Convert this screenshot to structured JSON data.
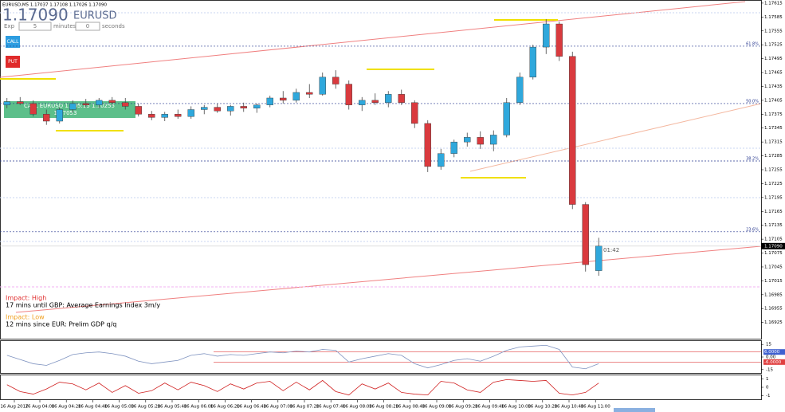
{
  "overlay": {
    "header": "EURUSD,M5 1.17037 1.17108 1.17026 1.17090",
    "big_price": "1.17090",
    "symbol": "EURUSD",
    "exp_label": "Exp",
    "exp_minutes": "5",
    "minutes_label": "minutes",
    "exp_seconds": "0",
    "seconds_label": "seconds",
    "call_button": "CALL",
    "put_button": "PUT",
    "trade_line1": "CALL EURUSD 11:05:15 1.10255",
    "trade_line2": "1.17053",
    "impact_high": "Impact: High",
    "news_high": "17 mins until GBP: Average Earnings Index 3m/y",
    "impact_low": "Impact: Low",
    "news_low": "12 mins since EUR: Prelim GDP q/q",
    "timer": "01:42"
  },
  "chart_data": {
    "type": "candlestick",
    "open": [
      1.17395,
      1.17402,
      1.17398,
      1.17375,
      1.1736,
      1.17385,
      1.17398,
      1.17395,
      1.17405,
      1.174,
      1.17392,
      1.17375,
      1.17368,
      1.17375,
      1.1737,
      1.17385,
      1.1739,
      1.17382,
      1.17392,
      1.17388,
      1.17395,
      1.1741,
      1.17405,
      1.17422,
      1.17418,
      1.17455,
      1.1744,
      1.17395,
      1.17405,
      1.174,
      1.17418,
      1.174,
      1.17355,
      1.17262,
      1.1729,
      1.17315,
      1.17325,
      1.1731,
      1.1733,
      1.174,
      1.17455,
      1.1752,
      1.1757,
      1.175,
      1.1718,
      1.17037
    ],
    "high": [
      1.1741,
      1.17412,
      1.17405,
      1.17385,
      1.1739,
      1.17405,
      1.17408,
      1.1741,
      1.17412,
      1.1741,
      1.17398,
      1.17382,
      1.1738,
      1.17385,
      1.17392,
      1.17395,
      1.17398,
      1.17395,
      1.174,
      1.17398,
      1.17415,
      1.17425,
      1.1743,
      1.1744,
      1.17465,
      1.1747,
      1.17448,
      1.17412,
      1.1742,
      1.17425,
      1.17428,
      1.17405,
      1.17362,
      1.173,
      1.1732,
      1.17335,
      1.17338,
      1.1734,
      1.1741,
      1.17465,
      1.17525,
      1.1758,
      1.17575,
      1.1751,
      1.17185,
      1.17108
    ],
    "low": [
      1.17388,
      1.17395,
      1.1737,
      1.17352,
      1.17355,
      1.17378,
      1.1739,
      1.17388,
      1.17395,
      1.17385,
      1.1737,
      1.17362,
      1.1736,
      1.17365,
      1.17365,
      1.17375,
      1.17378,
      1.17372,
      1.1738,
      1.17378,
      1.1739,
      1.17398,
      1.174,
      1.1741,
      1.17415,
      1.1743,
      1.17385,
      1.17382,
      1.17395,
      1.1739,
      1.17395,
      1.17345,
      1.1725,
      1.17255,
      1.17282,
      1.17305,
      1.173,
      1.17295,
      1.17325,
      1.17395,
      1.1745,
      1.17505,
      1.1749,
      1.1717,
      1.17035,
      1.17026
    ],
    "close": [
      1.17402,
      1.17398,
      1.17375,
      1.1736,
      1.17385,
      1.17398,
      1.17395,
      1.17405,
      1.174,
      1.17392,
      1.17375,
      1.17368,
      1.17375,
      1.1737,
      1.17385,
      1.1739,
      1.17382,
      1.17392,
      1.17388,
      1.17395,
      1.1741,
      1.17405,
      1.17422,
      1.17418,
      1.17455,
      1.1744,
      1.17395,
      1.17405,
      1.174,
      1.17418,
      1.174,
      1.17355,
      1.17262,
      1.1729,
      1.17315,
      1.17325,
      1.1731,
      1.1733,
      1.174,
      1.17455,
      1.1752,
      1.1757,
      1.175,
      1.1718,
      1.1705,
      1.1709
    ],
    "up_color": "#2fa8dc",
    "down_color": "#d93a3e",
    "ylim": [
      1.1689,
      1.1762
    ],
    "yticks": [
      1.17615,
      1.17585,
      1.17555,
      1.17525,
      1.17495,
      1.17465,
      1.17435,
      1.17405,
      1.17375,
      1.17345,
      1.17315,
      1.17285,
      1.17255,
      1.17225,
      1.17195,
      1.17165,
      1.17135,
      1.17105,
      1.17075,
      1.17045,
      1.17015,
      1.16985,
      1.16955,
      1.16925
    ],
    "last_price": {
      "value": 1.1709,
      "label": "1.17090"
    },
    "fib_levels": [
      {
        "value": 1.17522,
        "label": "61.8%"
      },
      {
        "value": 1.17398,
        "label": "50.0%"
      },
      {
        "value": 1.17274,
        "label": "38.2%"
      },
      {
        "value": 1.17121,
        "label": "23.6%"
      }
    ],
    "xticks": [
      "16 Aug 2017",
      "16 Aug 04:00",
      "16 Aug 04:20",
      "16 Aug 04:40",
      "16 Aug 05:00",
      "16 Aug 05:20",
      "16 Aug 05:40",
      "16 Aug 06:00",
      "16 Aug 06:20",
      "16 Aug 06:40",
      "16 Aug 07:00",
      "16 Aug 07:20",
      "16 Aug 07:40",
      "16 Aug 08:00",
      "16 Aug 08:20",
      "16 Aug 08:40",
      "16 Aug 09:00",
      "16 Aug 09:20",
      "16 Aug 09:40",
      "16 Aug 10:00",
      "16 Aug 10:20",
      "16 Aug 10:40",
      "16 Aug 11:00"
    ],
    "indicators": [
      {
        "values": [
          2,
          -3,
          -8,
          -10,
          -4,
          3,
          5,
          6,
          4,
          1,
          -5,
          -8,
          -6,
          -4,
          2,
          4,
          1,
          3,
          2,
          4,
          6,
          5,
          7,
          6,
          9,
          8,
          -6,
          -2,
          1,
          4,
          2,
          -8,
          -13,
          -9,
          -4,
          -2,
          -5,
          1,
          8,
          12,
          13,
          14,
          9,
          -12,
          -14,
          -8
        ],
        "color": "#7f93c0",
        "ylim": [
          -19,
          19
        ],
        "yticks": [
          15,
          {
            "value": 0,
            "label": "0.00"
          },
          -15
        ],
        "levels": [
          {
            "value": 6,
            "label": "6.0000"
          },
          {
            "value": -6,
            "label": "-6.0000"
          }
        ]
      },
      {
        "values": [
          0.3,
          -0.5,
          -0.8,
          -0.2,
          0.6,
          0.4,
          -0.3,
          0.5,
          -0.6,
          0.2,
          -0.7,
          -0.4,
          0.5,
          -0.3,
          0.6,
          0.2,
          -0.5,
          0.4,
          -0.2,
          0.5,
          0.7,
          -0.4,
          0.6,
          -0.3,
          0.8,
          -0.5,
          -0.9,
          0.4,
          -0.2,
          0.5,
          -0.6,
          -0.8,
          -0.9,
          0.7,
          0.5,
          -0.3,
          -0.6,
          0.6,
          0.9,
          0.8,
          0.7,
          0.8,
          -0.7,
          -0.9,
          -0.6,
          0.5
        ],
        "color": "#d02020",
        "ylim": [
          -1.4,
          1.4
        ],
        "yticks": [
          1,
          0,
          -1
        ]
      }
    ]
  }
}
